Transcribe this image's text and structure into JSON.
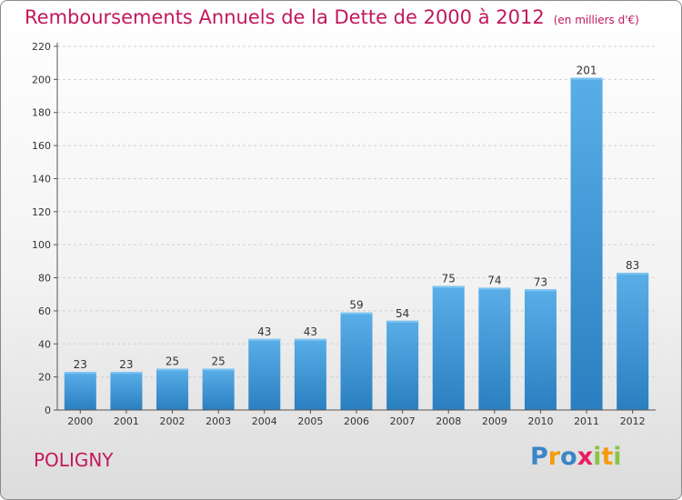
{
  "title": "Remboursements Annuels de la Dette de 2000 à 2012",
  "unit": "(en milliers d'€)",
  "commune": "POLIGNY",
  "logo": {
    "text": "Proxiti",
    "letters": [
      "P",
      "r",
      "o",
      "x",
      "i",
      "t",
      "i"
    ],
    "colors": [
      "#3a86c8",
      "#f39c12",
      "#3a86c8",
      "#e91e63",
      "#8bc34a",
      "#f39c12",
      "#8bc34a"
    ]
  },
  "colors": {
    "title": "#c2185b",
    "bar_light": "#5aaee8",
    "bar_dark": "#2a7fc0",
    "grid": "#d0d0d0"
  },
  "chart_data": {
    "type": "bar",
    "categories": [
      "2000",
      "2001",
      "2002",
      "2003",
      "2004",
      "2005",
      "2006",
      "2007",
      "2008",
      "2009",
      "2010",
      "2011",
      "2012"
    ],
    "values": [
      23,
      23,
      25,
      25,
      43,
      43,
      59,
      54,
      75,
      74,
      73,
      201,
      83
    ],
    "ylim": [
      0,
      220
    ],
    "yticks": [
      0,
      20,
      40,
      60,
      80,
      100,
      120,
      140,
      160,
      180,
      200,
      220
    ],
    "grid": true,
    "title": "Remboursements Annuels de la Dette de 2000 à 2012",
    "xlabel": "",
    "ylabel": ""
  }
}
